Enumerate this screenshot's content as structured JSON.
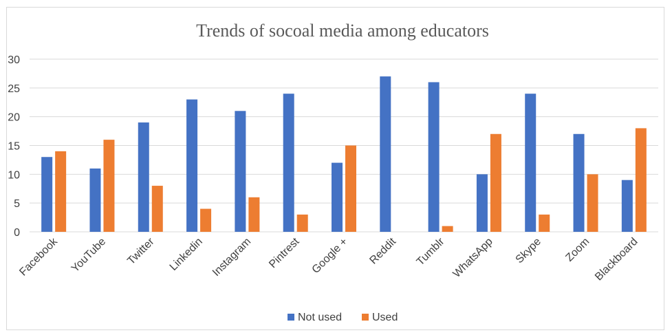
{
  "chart_data": {
    "type": "bar",
    "title": "Trends of socoal media among educators",
    "xlabel": "",
    "ylabel": "",
    "categories": [
      "Facebook",
      "YouTube",
      "Twitter",
      "Linkedin",
      "Instagram",
      "Pintrest",
      "Google +",
      "Reddit",
      "Tumblr",
      "WhatsApp",
      "Skype",
      "Zoom",
      "Blackboard"
    ],
    "series": [
      {
        "name": "Not used",
        "color": "#4472c4",
        "values": [
          13,
          11,
          19,
          23,
          21,
          24,
          12,
          27,
          26,
          10,
          24,
          17,
          9
        ]
      },
      {
        "name": "Used",
        "color": "#ed7d31",
        "values": [
          14,
          16,
          8,
          4,
          6,
          3,
          15,
          0,
          1,
          17,
          3,
          10,
          18
        ]
      }
    ],
    "ylim": [
      0,
      30
    ],
    "yticks": [
      "0",
      "5",
      "10",
      "15",
      "20",
      "25",
      "30"
    ],
    "grid": true,
    "legend_position": "bottom"
  }
}
